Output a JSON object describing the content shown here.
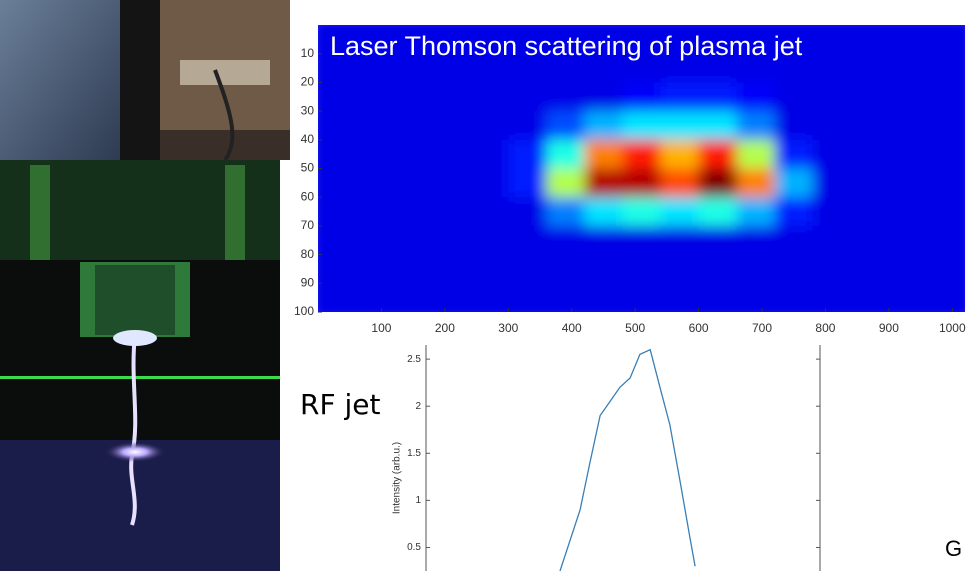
{
  "chart_data": [
    {
      "type": "heatmap",
      "title": "Laser Thomson scattering of plasma jet",
      "colormap": "jet",
      "xlim": [
        0,
        1020
      ],
      "ylim": [
        0,
        100
      ],
      "xticks": [
        100,
        200,
        300,
        400,
        500,
        600,
        700,
        800,
        900,
        1000
      ],
      "yticks": [
        10,
        20,
        30,
        40,
        50,
        60,
        70,
        80,
        90,
        100
      ],
      "z": [
        [
          0.1,
          0.1,
          0.1,
          0.1,
          0.1,
          0.1,
          0.1,
          0.1,
          0.1,
          0.1,
          0.1,
          0.1,
          0.1,
          0.1,
          0.1,
          0.1,
          0.1
        ],
        [
          0.1,
          0.1,
          0.1,
          0.1,
          0.1,
          0.1,
          0.1,
          0.1,
          0.1,
          0.1,
          0.1,
          0.1,
          0.1,
          0.1,
          0.1,
          0.1,
          0.1
        ],
        [
          0.1,
          0.1,
          0.1,
          0.1,
          0.1,
          0.1,
          0.1,
          0.1,
          0.12,
          0.15,
          0.15,
          0.12,
          0.1,
          0.1,
          0.1,
          0.1,
          0.1
        ],
        [
          0.1,
          0.1,
          0.1,
          0.1,
          0.1,
          0.1,
          0.2,
          0.3,
          0.35,
          0.35,
          0.35,
          0.25,
          0.1,
          0.1,
          0.1,
          0.1,
          0.1
        ],
        [
          0.1,
          0.1,
          0.1,
          0.1,
          0.1,
          0.15,
          0.4,
          0.75,
          0.85,
          0.7,
          0.85,
          0.55,
          0.15,
          0.1,
          0.1,
          0.1,
          0.1
        ],
        [
          0.1,
          0.1,
          0.1,
          0.1,
          0.1,
          0.15,
          0.55,
          0.95,
          0.95,
          0.8,
          1.0,
          0.75,
          0.3,
          0.1,
          0.1,
          0.1,
          0.1
        ],
        [
          0.1,
          0.1,
          0.1,
          0.1,
          0.1,
          0.1,
          0.25,
          0.35,
          0.4,
          0.35,
          0.4,
          0.3,
          0.15,
          0.1,
          0.1,
          0.1,
          0.1
        ],
        [
          0.1,
          0.1,
          0.1,
          0.1,
          0.1,
          0.1,
          0.1,
          0.1,
          0.1,
          0.1,
          0.1,
          0.1,
          0.1,
          0.1,
          0.1,
          0.1,
          0.1
        ],
        [
          0.1,
          0.1,
          0.1,
          0.1,
          0.1,
          0.1,
          0.1,
          0.1,
          0.1,
          0.1,
          0.1,
          0.1,
          0.1,
          0.1,
          0.1,
          0.1,
          0.1
        ],
        [
          0.1,
          0.1,
          0.1,
          0.1,
          0.1,
          0.1,
          0.1,
          0.1,
          0.1,
          0.1,
          0.1,
          0.1,
          0.1,
          0.1,
          0.1,
          0.1,
          0.1
        ]
      ]
    },
    {
      "type": "line",
      "ylabel": "Intensity (arb.u.)",
      "color": "#3a7fb5",
      "xlim": [
        0,
        1000
      ],
      "ylim": [
        0.25,
        2.65
      ],
      "yticks": [
        0.5,
        1,
        1.5,
        2,
        2.5
      ],
      "x": [
        340,
        391,
        416,
        442,
        467,
        492,
        518,
        543,
        569,
        594,
        619,
        645,
        670,
        683
      ],
      "values": [
        0.25,
        0.9,
        1.4,
        1.9,
        2.05,
        2.2,
        2.3,
        2.55,
        2.6,
        2.2,
        1.8,
        1.2,
        0.6,
        0.3
      ]
    }
  ],
  "labels": {
    "jet": "RF jet",
    "corner": "G"
  }
}
